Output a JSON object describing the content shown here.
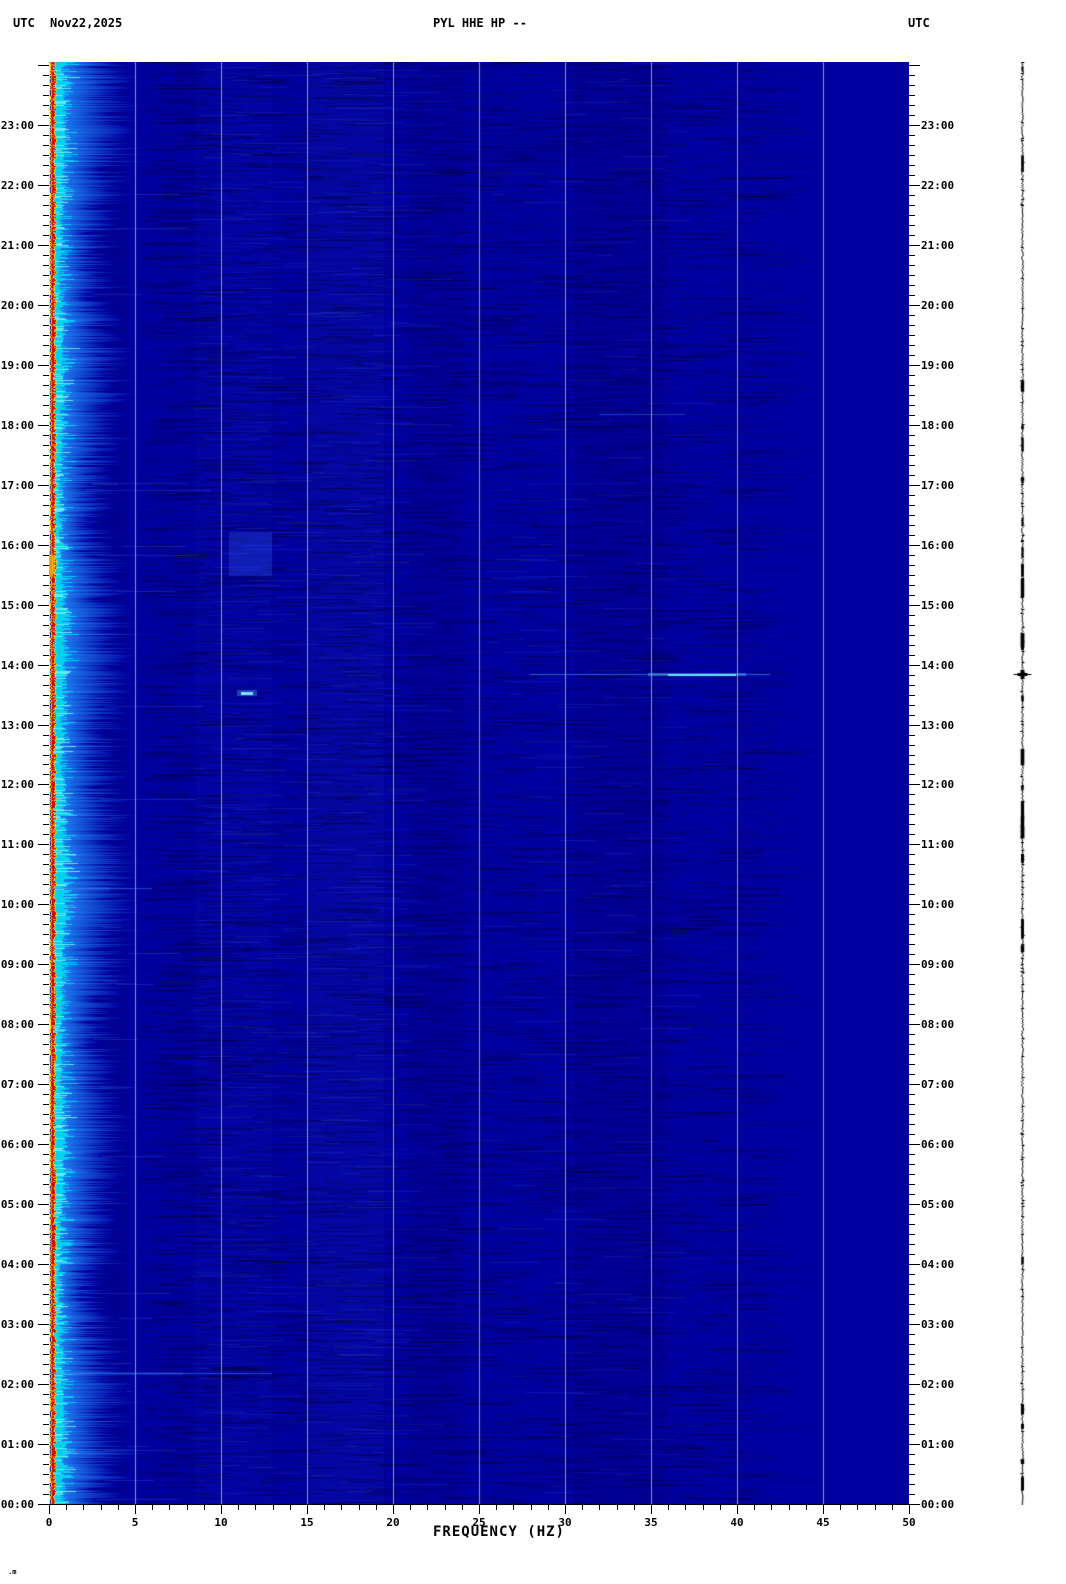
{
  "header": {
    "left_tz": "UTC",
    "date": "Nov22,2025",
    "station": "PYL HHE HP --",
    "right_tz": "UTC"
  },
  "corner_mark": ".m",
  "chart_data": {
    "type": "heatmap",
    "subtype": "seismic-spectrogram-day-plot",
    "title": "PYL HHE HP --",
    "station": "PYL",
    "channel": "HHE",
    "processing": "HP",
    "date": "Nov22,2025",
    "timezone": "UTC",
    "xlabel": "FREQUENCY (HZ)",
    "xlim": [
      0,
      50
    ],
    "x_major_ticks": [
      0,
      5,
      10,
      15,
      20,
      25,
      30,
      35,
      40,
      45,
      50
    ],
    "x_major_tick_labels": [
      "0",
      "5",
      "10",
      "15",
      "20",
      "25",
      "30",
      "35",
      "40",
      "45",
      "50"
    ],
    "x_minor_step_hz": 1,
    "ylim_hours": [
      0,
      24
    ],
    "y_orientation": "00:00 at bottom, 24:00 at top, time increases upward",
    "y_hour_labels": [
      "00:00",
      "01:00",
      "02:00",
      "03:00",
      "04:00",
      "05:00",
      "06:00",
      "07:00",
      "08:00",
      "09:00",
      "10:00",
      "11:00",
      "12:00",
      "13:00",
      "14:00",
      "15:00",
      "16:00",
      "17:00",
      "18:00",
      "19:00",
      "20:00",
      "21:00",
      "22:00",
      "23:00"
    ],
    "y_minor_tick_step_minutes": 10,
    "grid": {
      "vertical_lines_hz": [
        5,
        10,
        15,
        20,
        25,
        30,
        35,
        40,
        45
      ],
      "color": "#9a9a9a",
      "horizontal": false
    },
    "colormap": "jet",
    "base_level_color": "#0000a0",
    "bands": [
      {
        "name": "microseism-band",
        "freq_hz": [
          0,
          2.2
        ],
        "level": "saturated",
        "colors": [
          "#fffde0",
          "#d80000",
          "#ffdf00",
          "#00d2f2"
        ],
        "time_span": "all-day",
        "desc": "continuous bright ragged band hugging the left edge all day"
      },
      {
        "name": "decay-haze",
        "freq_hz": [
          2.2,
          6
        ],
        "level": "elevated fading to background"
      },
      {
        "name": "dark-column",
        "freq_hz": [
          2.6,
          4.6
        ],
        "level": "slightly darker than background"
      },
      {
        "name": "light-haze-column",
        "freq_hz": [
          15,
          19.5
        ],
        "level": "slightly lighter than background"
      },
      {
        "name": "dark-column-2",
        "freq_hz": [
          30.5,
          36
        ],
        "level": "slightly darker, dashed texture"
      },
      {
        "name": "quiet-zone",
        "freq_hz": [
          43,
          50
        ],
        "level": "flat uniform background"
      }
    ],
    "events": [
      {
        "time": "13:50",
        "freq_hz": [
          28,
          42
        ],
        "peak_freq_hz": [
          36,
          40
        ],
        "color": "#58e8ff",
        "kind": "narrow horizontal streak",
        "desc": "bright cyan monochromatic line, brightest 36-40 Hz"
      },
      {
        "time": "13:32",
        "freq_hz": [
          11.2,
          11.8
        ],
        "color": "#7ce0ff",
        "kind": "dot",
        "desc": "small isolated bright dot near 11.4 Hz"
      },
      {
        "time": "10:16",
        "freq_hz": [
          0,
          6
        ],
        "color": "#3b82ff",
        "kind": "faint line",
        "desc": "faint light-blue broadband line near low frequencies"
      },
      {
        "time": "02:11",
        "freq_hz": [
          0,
          13
        ],
        "color": "#3b82ff",
        "kind": "faint line",
        "desc": "faint light-blue broadband line"
      },
      {
        "time": "18:10",
        "freq_hz": [
          32,
          37
        ],
        "color": "#35b8e8",
        "kind": "very faint line",
        "desc": "weak cyan dash"
      },
      {
        "time": "15:40",
        "freq_hz": [
          0,
          0.4
        ],
        "color": "#ff9900",
        "kind": "edge blob",
        "desc": "orange hot spot on left edge near 15:40"
      },
      {
        "time": "15:50",
        "freq_hz": [
          10.5,
          13
        ],
        "color": "#2255ee",
        "kind": "smudge",
        "desc": "soft lighter-blue patch"
      }
    ],
    "side_trace": {
      "position": "right margin",
      "color": "#000000",
      "desc": "vertical amplitude (helicorder-style) trace for same day",
      "spike_time": "13:50"
    }
  }
}
